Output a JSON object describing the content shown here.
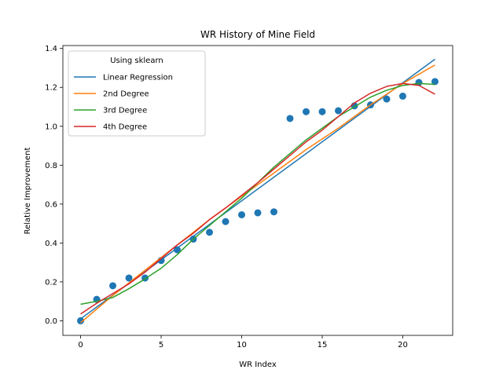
{
  "chart_data": {
    "type": "scatter",
    "title": "WR History of Mine Field",
    "xlabel": "WR Index",
    "ylabel": "Relative Improvement",
    "xlim": [
      -1.1,
      23.1
    ],
    "ylim": [
      -0.075,
      1.415
    ],
    "xticks": [
      0,
      5,
      10,
      15,
      20
    ],
    "yticks": [
      0.0,
      0.2,
      0.4,
      0.6,
      0.8,
      1.0,
      1.2,
      1.4
    ],
    "xtick_labels": [
      "0",
      "5",
      "10",
      "15",
      "20"
    ],
    "ytick_labels": [
      "0.0",
      "0.2",
      "0.4",
      "0.6",
      "0.8",
      "1.0",
      "1.2",
      "1.4"
    ],
    "grid": false,
    "legend": {
      "title": "Using sklearn",
      "placement": "upper-left"
    },
    "points": {
      "color": "#1f77b4",
      "x": [
        0,
        1,
        2,
        3,
        4,
        5,
        6,
        7,
        8,
        9,
        10,
        11,
        12,
        13,
        14,
        15,
        16,
        17,
        18,
        19,
        20,
        21,
        22
      ],
      "y": [
        0.0,
        0.11,
        0.18,
        0.22,
        0.22,
        0.31,
        0.365,
        0.42,
        0.455,
        0.51,
        0.545,
        0.555,
        0.56,
        1.04,
        1.075,
        1.075,
        1.08,
        1.105,
        1.11,
        1.14,
        1.155,
        1.225,
        1.23
      ]
    },
    "series": [
      {
        "name": "Linear Regression",
        "color": "#1f77b4",
        "x": [
          0,
          22
        ],
        "y": [
          0.01,
          1.345
        ]
      },
      {
        "name": "2nd Degree",
        "color": "#ff7f0e",
        "x": [
          0,
          2,
          4,
          6,
          8,
          10,
          12,
          14,
          16,
          18,
          20,
          22
        ],
        "y": [
          -0.01,
          0.13,
          0.26,
          0.39,
          0.52,
          0.64,
          0.76,
          0.88,
          0.99,
          1.11,
          1.22,
          1.315
        ]
      },
      {
        "name": "3rd Degree",
        "color": "#2ca02c",
        "x": [
          0,
          1,
          2,
          3,
          4,
          5,
          6,
          7,
          8,
          9,
          10,
          11,
          12,
          13,
          14,
          15,
          16,
          17,
          18,
          19,
          20,
          21,
          22
        ],
        "y": [
          0.085,
          0.1,
          0.12,
          0.165,
          0.215,
          0.27,
          0.34,
          0.42,
          0.49,
          0.56,
          0.63,
          0.71,
          0.79,
          0.86,
          0.93,
          0.99,
          1.05,
          1.1,
          1.15,
          1.185,
          1.21,
          1.22,
          1.215
        ]
      },
      {
        "name": "4th Degree",
        "color": "#d62728",
        "x": [
          0,
          1,
          2,
          3,
          4,
          5,
          6,
          7,
          8,
          9,
          10,
          11,
          12,
          13,
          14,
          15,
          16,
          17,
          18,
          19,
          20,
          21,
          22
        ],
        "y": [
          0.035,
          0.09,
          0.14,
          0.19,
          0.25,
          0.32,
          0.39,
          0.45,
          0.52,
          0.58,
          0.645,
          0.71,
          0.78,
          0.85,
          0.92,
          0.98,
          1.05,
          1.12,
          1.17,
          1.205,
          1.22,
          1.21,
          1.165
        ]
      }
    ]
  }
}
